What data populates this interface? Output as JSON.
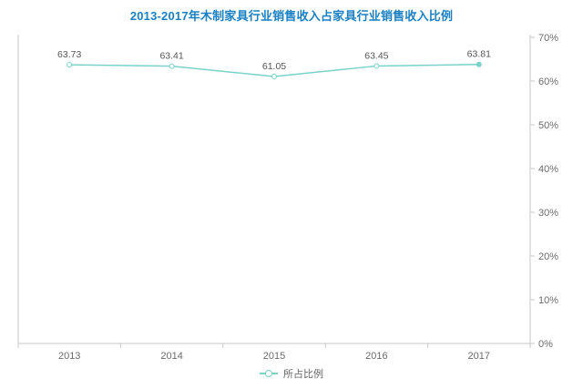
{
  "chart_data": {
    "type": "line",
    "title": "2013-2017年木制家具行业销售收入占家具行业销售收入比例",
    "categories": [
      "2013",
      "2014",
      "2015",
      "2016",
      "2017"
    ],
    "series": [
      {
        "name": "所占比例",
        "values": [
          63.73,
          63.41,
          61.05,
          63.45,
          63.81
        ],
        "color": "#7bd2ca"
      }
    ],
    "data_labels": [
      "63.73",
      "63.41",
      "61.05",
      "63.45",
      "63.81"
    ],
    "xlabel": "",
    "ylabel": "",
    "ylim": [
      0,
      70
    ],
    "y_ticks": [
      "0%",
      "10%",
      "20%",
      "30%",
      "40%",
      "50%",
      "60%",
      "70%"
    ],
    "y_axis_side": "right",
    "grid": false,
    "legend_position": "bottom"
  },
  "colors": {
    "title": "#1a80c4",
    "line": "#7bd2ca",
    "axis": "#c9c9c9",
    "tick_text": "#6b6b6b",
    "data_label_text": "#555555",
    "legend_text": "#666666"
  }
}
